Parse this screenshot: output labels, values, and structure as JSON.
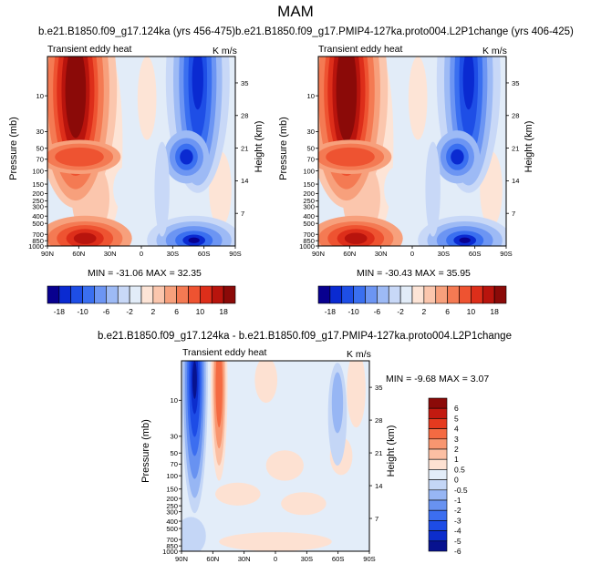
{
  "page_title": "MAM",
  "panels": [
    {
      "id": "left",
      "subtitle": "b.e21.B1850.f09_g17.124ka (yrs 456-475)",
      "left_label": "Transient eddy heat",
      "right_label": "K m/s",
      "ylabel": "Pressure (mb)",
      "ylabel_right": "Height (km)",
      "min_text": "MIN = -31.06   MAX =  32.35"
    },
    {
      "id": "right",
      "subtitle": "b.e21.B1850.f09_g17.PMIP4-127ka.proto004.L2P1change (yrs 406-425)",
      "left_label": "Transient eddy heat",
      "right_label": "K m/s",
      "ylabel": "Pressure (mb)",
      "ylabel_right": "Height (km)",
      "min_text": "MIN = -30.43   MAX =  35.95"
    },
    {
      "id": "diff",
      "subtitle": "b.e21.B1850.f09_g17.124ka - b.e21.B1850.f09_g17.PMIP4-127ka.proto004.L2P1change",
      "left_label": "Transient eddy heat",
      "right_label": "K m/s",
      "ylabel": "Pressure (mb)",
      "ylabel_right": "Height (km)",
      "min_text": "MIN =  -9.68   MAX =   3.07"
    }
  ],
  "chart_data": [
    {
      "type": "heatmap",
      "title": "b.e21.B1850.f09_g17.124ka (yrs 456-475)",
      "xlabel": "",
      "ylabel": "Pressure (mb)",
      "ylabel_right": "Height (km)",
      "x_ticks": [
        "90N",
        "60N",
        "30N",
        "0",
        "30S",
        "60S",
        "90S"
      ],
      "y_ticks": [
        "10",
        "30",
        "50",
        "70",
        "100",
        "150",
        "200",
        "250",
        "300",
        "400",
        "500",
        "700",
        "850",
        "1000"
      ],
      "y_ticks_right": [
        "35",
        "28",
        "21",
        "14",
        "7"
      ],
      "min": -31.06,
      "max": 32.35,
      "colorbar_labels": [
        "-18",
        "-10",
        "-6",
        "-2",
        "2",
        "6",
        "10",
        "18"
      ]
    },
    {
      "type": "heatmap",
      "title": "b.e21.B1850.f09_g17.PMIP4-127ka.proto004.L2P1change (yrs 406-425)",
      "xlabel": "",
      "ylabel": "Pressure (mb)",
      "ylabel_right": "Height (km)",
      "x_ticks": [
        "90N",
        "60N",
        "30N",
        "0",
        "30S",
        "60S",
        "90S"
      ],
      "y_ticks": [
        "10",
        "30",
        "50",
        "70",
        "100",
        "150",
        "200",
        "250",
        "300",
        "400",
        "500",
        "700",
        "850",
        "1000"
      ],
      "y_ticks_right": [
        "35",
        "28",
        "21",
        "14",
        "7"
      ],
      "min": -30.43,
      "max": 35.95,
      "colorbar_labels": [
        "-18",
        "-10",
        "-6",
        "-2",
        "2",
        "6",
        "10",
        "18"
      ]
    },
    {
      "type": "heatmap",
      "title": "b.e21.B1850.f09_g17.124ka - b.e21.B1850.f09_g17.PMIP4-127ka.proto004.L2P1change",
      "xlabel": "",
      "ylabel": "Pressure (mb)",
      "ylabel_right": "Height (km)",
      "x_ticks": [
        "90N",
        "60N",
        "30N",
        "0",
        "30S",
        "60S",
        "90S"
      ],
      "y_ticks": [
        "10",
        "30",
        "50",
        "70",
        "100",
        "150",
        "200",
        "250",
        "300",
        "400",
        "500",
        "700",
        "850",
        "1000"
      ],
      "y_ticks_right": [
        "35",
        "28",
        "21",
        "14",
        "7"
      ],
      "min": -9.68,
      "max": 3.07,
      "colorbar_labels": [
        "6",
        "5",
        "4",
        "3",
        "2",
        "1",
        "0.5",
        "0",
        "-0.5",
        "-1",
        "-2",
        "-3",
        "-4",
        "-5",
        "-6"
      ]
    }
  ],
  "colors": {
    "top_scale": [
      "#08008f",
      "#0a2ad1",
      "#1e4ee6",
      "#3a6ff0",
      "#6c95f3",
      "#9dbaf5",
      "#c8d8f7",
      "#e2ecf8",
      "#fde4d6",
      "#fbc6ad",
      "#f7a07c",
      "#f47a53",
      "#ee5331",
      "#dd2e1a",
      "#b8140d",
      "#8b0a08"
    ],
    "diff_scale": [
      "#8b0a08",
      "#c21a10",
      "#e53a1f",
      "#f46a42",
      "#f89670",
      "#fbbfa3",
      "#fde1d2",
      "#e3edf9",
      "#c4d6f6",
      "#97b6f4",
      "#6892f1",
      "#3c6ef0",
      "#1d4ce6",
      "#0c2dcc",
      "#07128f"
    ]
  }
}
